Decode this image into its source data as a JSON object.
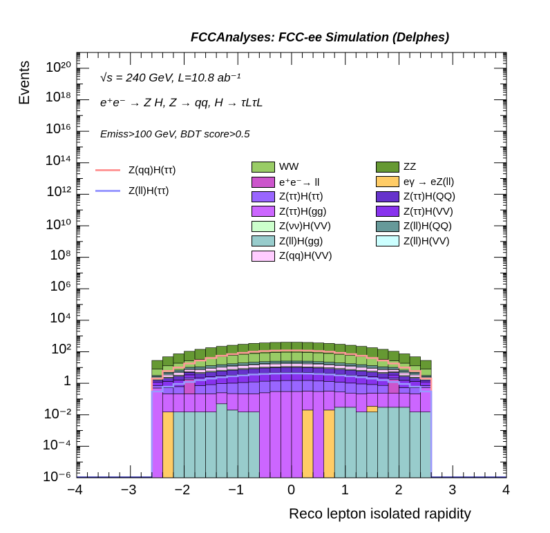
{
  "header": {
    "title": "FCCAnalyses: FCC-ee Simulation (Delphes)",
    "line1": "√s = 240 GeV, L=10.8 ab⁻¹",
    "line2": "e⁺e⁻ → Z H, Z → qq, H → τLτL",
    "cut": "Emiss>100 GeV, BDT score>0.5"
  },
  "chart_data": {
    "type": "bar",
    "stacked": true,
    "log_y": true,
    "xlabel": "Reco lepton isolated rapidity",
    "ylabel": "Events",
    "xlim": [
      -4,
      4
    ],
    "ylim": [
      1e-06,
      1e+21
    ],
    "x_ticks": [
      "−4",
      "−3",
      "−2",
      "−1",
      "0",
      "1",
      "2",
      "3",
      "4"
    ],
    "y_ticks": [
      "10⁻⁶",
      "10⁻⁴",
      "10⁻²",
      "1",
      "10²",
      "10⁴",
      "10⁶",
      "10⁸",
      "10¹⁰",
      "10¹²",
      "10¹⁴",
      "10¹⁶",
      "10¹⁸",
      "10²⁰"
    ],
    "bin_edges": [
      -2.6,
      -2.4,
      -2.2,
      -2.0,
      -1.8,
      -1.6,
      -1.4,
      -1.2,
      -1.0,
      -0.8,
      -0.6,
      -0.4,
      -0.2,
      0.0,
      0.2,
      0.4,
      0.6,
      0.8,
      1.0,
      1.2,
      1.4,
      1.6,
      1.8,
      2.0,
      2.2,
      2.4,
      2.6
    ],
    "stack_order_bottom_to_top": [
      "Z(ll)H(gg)",
      "eγ → eZ(ll)",
      "Z(ττ)H(gg)",
      "e⁺e⁻→ ll",
      "Z(ττ)H(ττ)",
      "Z(ττ)H(VV)",
      "Z(ττ)H(QQ)",
      "Z(νν)H(VV)",
      "Z(qq)H(VV)",
      "Z(ll)H(VV)",
      "Z(ll)H(QQ)",
      "WW",
      "ZZ"
    ],
    "series": [
      {
        "name": "Z(ll)H(gg)",
        "color": "#98cccc",
        "values": [
          0,
          0,
          0.015,
          0.015,
          0.015,
          0.015,
          0.05,
          0.02,
          0.015,
          0.015,
          0,
          0,
          0,
          0,
          0,
          0,
          0,
          0.03,
          0.03,
          0.015,
          0.015,
          0.03,
          0.03,
          0.03,
          0.015,
          0.015
        ]
      },
      {
        "name": "eγ → eZ(ll)",
        "color": "#ffcc66",
        "values": [
          0,
          0.015,
          0,
          0,
          0,
          0,
          0,
          0,
          0,
          0,
          0,
          0,
          0,
          0,
          0.02,
          0,
          0.02,
          0,
          0,
          0,
          0.02,
          0,
          0,
          0,
          0,
          0
        ]
      },
      {
        "name": "Z(ττ)H(gg)",
        "color": "#cc66ff",
        "values": [
          0.5,
          0.2,
          0.2,
          0.2,
          0.2,
          0.2,
          0.2,
          0.2,
          0.2,
          0.2,
          0.25,
          0.3,
          0.3,
          0.3,
          0.3,
          0.3,
          0.3,
          0.25,
          0.2,
          0.2,
          0.2,
          0.2,
          0.2,
          0.2,
          0.2,
          0.5
        ]
      },
      {
        "name": "e⁺e⁻→ ll",
        "color": "#cc55cc",
        "values": [
          0,
          0,
          0,
          1.5,
          0,
          0,
          0,
          0,
          0,
          0,
          0,
          0,
          0,
          0,
          0,
          0,
          0,
          0,
          0,
          0,
          0,
          0,
          1.5,
          0,
          0,
          0
        ]
      },
      {
        "name": "Z(ττ)H(ττ)",
        "color": "#9966ff",
        "values": [
          0.2,
          0.3,
          0.4,
          0.5,
          0.5,
          0.6,
          0.7,
          0.8,
          0.9,
          1.0,
          1.1,
          1.1,
          1.2,
          1.2,
          1.2,
          1.1,
          1.0,
          0.9,
          0.8,
          0.7,
          0.6,
          0.5,
          0.4,
          0.3,
          0.3,
          0.2
        ]
      },
      {
        "name": "Z(ττ)H(VV)",
        "color": "#8833ee",
        "values": [
          0.5,
          0.8,
          1.0,
          1.2,
          1.5,
          1.8,
          2.0,
          2.2,
          2.5,
          2.8,
          3.0,
          3.2,
          3.3,
          3.3,
          3.2,
          3.0,
          2.8,
          2.5,
          2.2,
          2.0,
          1.8,
          1.5,
          1.2,
          1.0,
          0.8,
          0.5
        ]
      },
      {
        "name": "Z(ττ)H(QQ)",
        "color": "#6633cc",
        "values": [
          0.4,
          0.8,
          1.2,
          1.5,
          2.0,
          2.5,
          3.0,
          3.5,
          4.0,
          4.5,
          5.0,
          5.3,
          5.5,
          5.5,
          5.3,
          5.0,
          4.5,
          4.0,
          3.5,
          3.0,
          2.5,
          2.0,
          1.5,
          1.2,
          0.8,
          0.4
        ]
      },
      {
        "name": "Z(νν)H(VV)",
        "color": "#ccffcc",
        "values": [
          0.2,
          0.3,
          0.4,
          0.5,
          0.6,
          0.7,
          0.8,
          0.9,
          1.0,
          1.0,
          1.1,
          1.1,
          1.2,
          1.2,
          1.1,
          1.1,
          1.0,
          1.0,
          0.9,
          0.8,
          0.7,
          0.6,
          0.5,
          0.4,
          0.3,
          0.2
        ]
      },
      {
        "name": "Z(qq)H(VV)",
        "color": "#ffccff",
        "values": [
          0.5,
          1.0,
          1.5,
          2.0,
          2.5,
          3.0,
          3.5,
          4.0,
          4.5,
          5.0,
          5.5,
          6.0,
          6.0,
          6.0,
          6.0,
          5.5,
          5.0,
          4.5,
          4.0,
          3.5,
          3.0,
          2.5,
          2.0,
          1.5,
          1.0,
          0.5
        ]
      },
      {
        "name": "Z(ll)H(VV)",
        "color": "#ccffff",
        "values": [
          0.3,
          0.5,
          0.7,
          0.9,
          1.1,
          1.3,
          1.5,
          1.7,
          1.9,
          2.0,
          2.1,
          2.2,
          2.2,
          2.2,
          2.2,
          2.1,
          2.0,
          1.9,
          1.7,
          1.5,
          1.3,
          1.1,
          0.9,
          0.7,
          0.5,
          0.3
        ]
      },
      {
        "name": "Z(ll)H(QQ)",
        "color": "#669999",
        "values": [
          0.5,
          1.0,
          1.5,
          2.0,
          2.5,
          3.0,
          3.5,
          4.0,
          4.5,
          5.0,
          5.5,
          6.0,
          6.0,
          6.0,
          6.0,
          5.5,
          5.0,
          4.5,
          4.0,
          3.5,
          3.0,
          2.5,
          2.0,
          1.5,
          1.0,
          0.5
        ]
      },
      {
        "name": "WW",
        "color": "#99cc66",
        "values": [
          5,
          8,
          12,
          17,
          22,
          28,
          35,
          42,
          50,
          57,
          62,
          66,
          68,
          68,
          66,
          62,
          57,
          50,
          42,
          35,
          28,
          22,
          17,
          12,
          8,
          5
        ]
      },
      {
        "name": "ZZ",
        "color": "#669933",
        "values": [
          20,
          35,
          55,
          80,
          110,
          140,
          170,
          200,
          230,
          260,
          280,
          300,
          310,
          310,
          300,
          280,
          260,
          230,
          200,
          170,
          140,
          110,
          80,
          55,
          35,
          20
        ]
      }
    ],
    "overlays": [
      {
        "name": "Z(qq)H(ττ)",
        "color": "#ff9999",
        "values": [
          2,
          6,
          10,
          18,
          28,
          40,
          55,
          70,
          85,
          100,
          110,
          118,
          120,
          120,
          118,
          110,
          100,
          85,
          70,
          55,
          40,
          28,
          18,
          10,
          6,
          2
        ]
      },
      {
        "name": "Z(ll)H(ττ)",
        "color": "#9999ff",
        "values": [
          0.3,
          0.6,
          0.9,
          1.2,
          1.6,
          2.0,
          2.4,
          2.8,
          3.2,
          3.6,
          3.9,
          4.1,
          4.2,
          4.2,
          4.1,
          3.9,
          3.6,
          3.2,
          2.8,
          2.4,
          2.0,
          1.6,
          1.2,
          0.9,
          0.6,
          0.3
        ]
      }
    ],
    "legend_columns": [
      [
        "WW",
        "e⁺e⁻→ ll",
        "Z(ττ)H(ττ)",
        "Z(ττ)H(gg)",
        "Z(νν)H(VV)",
        "Z(ll)H(gg)",
        "Z(qq)H(VV)"
      ],
      [
        "ZZ",
        "eγ → eZ(ll)",
        "Z(ττ)H(QQ)",
        "Z(ττ)H(VV)",
        "Z(ll)H(QQ)",
        "Z(ll)H(VV)"
      ]
    ],
    "legend_lines": [
      "Z(qq)H(ττ)",
      "Z(ll)H(ττ)"
    ]
  }
}
